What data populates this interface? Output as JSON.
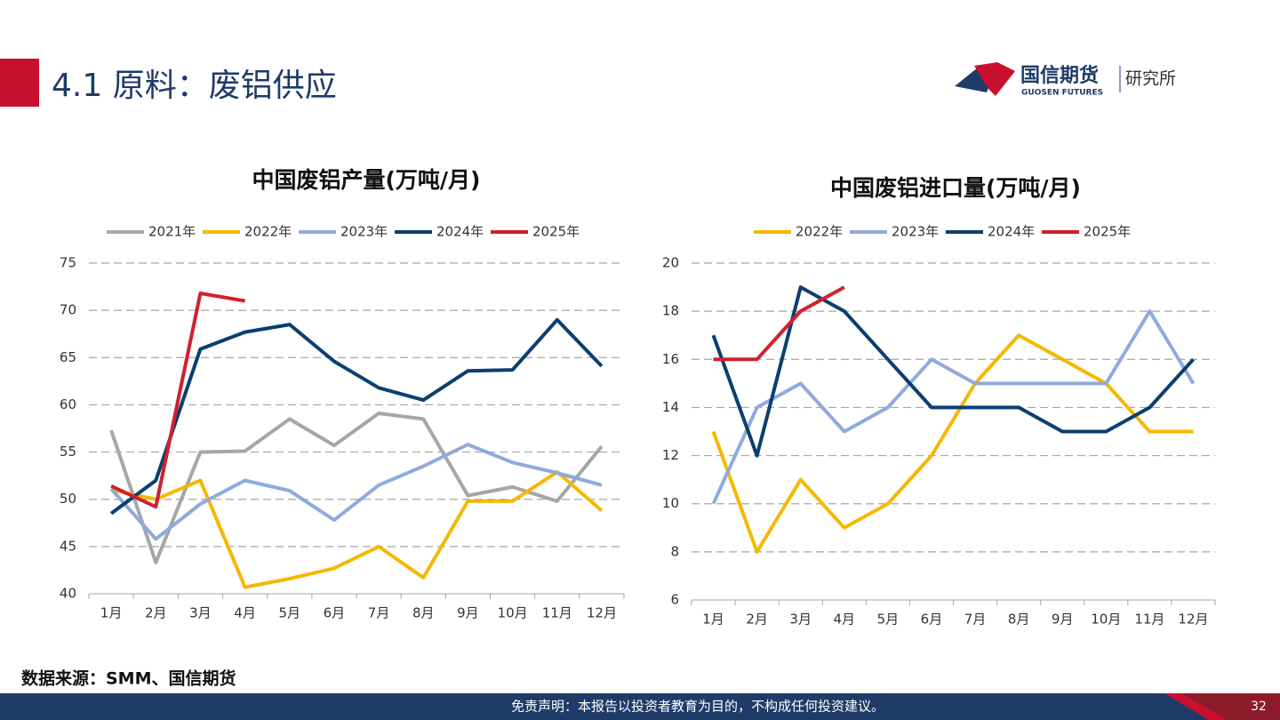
{
  "header": {
    "title": "4.1 原料：废铝供应",
    "logo_name": "国信期货",
    "logo_english": "GUOSEN FUTURES",
    "logo_unit": "研究所"
  },
  "chart_data": [
    {
      "type": "line",
      "title": "中国废铝产量(万吨/月)",
      "categories": [
        "1月",
        "2月",
        "3月",
        "4月",
        "5月",
        "6月",
        "7月",
        "8月",
        "9月",
        "10月",
        "11月",
        "12月"
      ],
      "ylim": [
        40,
        75
      ],
      "yticks": [
        40,
        45,
        50,
        55,
        60,
        65,
        70,
        75
      ],
      "grid": true,
      "series": [
        {
          "name": "2021年",
          "color": "#a6a6a6",
          "values": [
            57.3,
            43.3,
            55.0,
            55.1,
            58.5,
            55.7,
            59.1,
            58.5,
            50.4,
            51.3,
            49.8,
            55.6
          ]
        },
        {
          "name": "2022年",
          "color": "#f5b800",
          "values": [
            51.0,
            50.0,
            52.0,
            40.7,
            41.6,
            42.7,
            45.0,
            41.7,
            49.8,
            49.8,
            52.9,
            48.8
          ]
        },
        {
          "name": "2023年",
          "color": "#8faadc",
          "values": [
            51.1,
            45.8,
            49.5,
            52.0,
            50.9,
            47.8,
            51.5,
            53.5,
            55.8,
            53.9,
            52.8,
            51.5
          ]
        },
        {
          "name": "2024年",
          "color": "#0b3f6f",
          "values": [
            48.5,
            52.0,
            65.9,
            67.7,
            68.5,
            64.6,
            61.8,
            60.5,
            63.6,
            63.7,
            69.0,
            64.1
          ]
        },
        {
          "name": "2025年",
          "color": "#d0202e",
          "values": [
            51.4,
            49.2,
            71.8,
            71.0,
            null,
            null,
            null,
            null,
            null,
            null,
            null,
            null
          ]
        }
      ]
    },
    {
      "type": "line",
      "title": "中国废铝进口量(万吨/月)",
      "categories": [
        "1月",
        "2月",
        "3月",
        "4月",
        "5月",
        "6月",
        "7月",
        "8月",
        "9月",
        "10月",
        "11月",
        "12月"
      ],
      "ylim": [
        6,
        20
      ],
      "yticks": [
        6,
        8,
        10,
        12,
        14,
        16,
        18,
        20
      ],
      "grid": true,
      "series": [
        {
          "name": "2022年",
          "color": "#f5b800",
          "values": [
            13,
            8,
            11,
            9,
            10,
            12,
            15,
            17,
            16,
            15,
            13,
            13
          ]
        },
        {
          "name": "2023年",
          "color": "#8faadc",
          "values": [
            10,
            14,
            15,
            13,
            14,
            16,
            15,
            15,
            15,
            15,
            18,
            15
          ]
        },
        {
          "name": "2024年",
          "color": "#0b3f6f",
          "values": [
            17,
            12,
            19,
            18,
            16,
            14,
            14,
            14,
            13,
            13,
            14,
            16
          ]
        },
        {
          "name": "2025年",
          "color": "#d0202e",
          "values": [
            16,
            16,
            18,
            19,
            null,
            null,
            null,
            null,
            null,
            null,
            null,
            null
          ]
        }
      ]
    }
  ],
  "source": "数据来源：SMM、国信期货",
  "footer": {
    "disclaimer": "免责声明：本报告以投资者教育为目的，不构成任何投资建议。",
    "page": "32"
  }
}
